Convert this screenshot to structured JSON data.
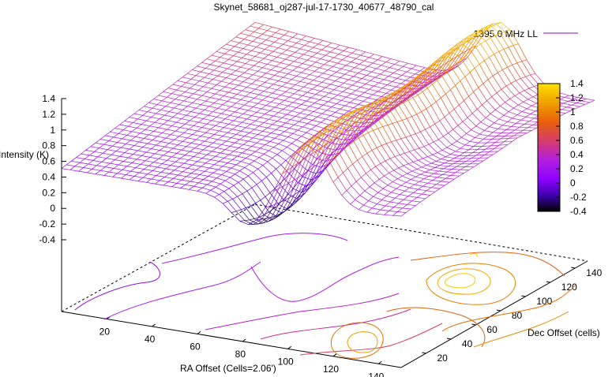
{
  "chart_data": {
    "type": "surface",
    "title": "Skynet_58681_oj287-jul-17-1730_40677_48790_cal",
    "xlabel": "RA Offset (Cells=2.06')",
    "ylabel": "Dec Offset (cells)",
    "zlabel": "Intensity (K)",
    "legend": {
      "label": "1395.0 MHz LL",
      "color": "#9a3fd0",
      "placement": "top-right"
    },
    "x_ticks": [
      "20",
      "40",
      "60",
      "80",
      "100",
      "120",
      "140"
    ],
    "y_ticks": [
      "20",
      "40",
      "60",
      "80",
      "100",
      "120",
      "140"
    ],
    "z_ticks": [
      "1.4",
      "1.2",
      "1",
      "0.8",
      "0.6",
      "0.4",
      "0.2",
      "0",
      "-0.2",
      "-0.4"
    ],
    "xlim": [
      0,
      150
    ],
    "ylim": [
      0,
      150
    ],
    "zlim": [
      -0.4,
      1.4
    ],
    "colorbar": {
      "ticks": [
        "1.4",
        "1.2",
        "1",
        "0.8",
        "0.6",
        "0.4",
        "0.2",
        "0",
        "-0.2",
        "-0.4"
      ],
      "range": [
        -0.4,
        1.4
      ],
      "colormap": [
        "#000000",
        "#3a00a8",
        "#8e00ff",
        "#b21ee0",
        "#d63c6c",
        "#e8600a",
        "#f0a000",
        "#ffe000"
      ]
    },
    "contour_levels": [
      -0.2,
      0.0,
      0.2,
      0.4,
      0.6,
      0.8,
      1.0,
      1.2
    ]
  }
}
